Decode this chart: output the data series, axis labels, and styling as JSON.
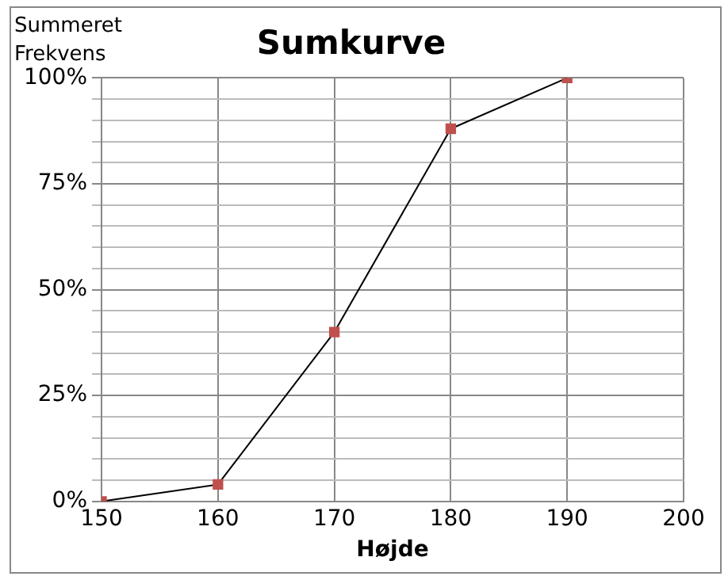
{
  "chart_data": {
    "type": "line",
    "title": "Sumkurve",
    "xlabel": "Højde",
    "ylabel": "Summeret Frekvens",
    "x": [
      150,
      160,
      170,
      180,
      190
    ],
    "series": [
      {
        "color": "#c0504d",
        "values": [
          0,
          4,
          40,
          88,
          100
        ]
      }
    ],
    "xlim": [
      150,
      200
    ],
    "xticks": [
      150,
      160,
      170,
      180,
      190,
      200
    ],
    "ylim": [
      0,
      100
    ],
    "yticks": [
      {
        "value": 0,
        "label": "0%"
      },
      {
        "value": 5,
        "label": null
      },
      {
        "value": 10,
        "label": null
      },
      {
        "value": 15,
        "label": null
      },
      {
        "value": 20,
        "label": null
      },
      {
        "value": 25,
        "label": "25%"
      },
      {
        "value": 30,
        "label": null
      },
      {
        "value": 35,
        "label": null
      },
      {
        "value": 40,
        "label": null
      },
      {
        "value": 45,
        "label": null
      },
      {
        "value": 50,
        "label": "50%"
      },
      {
        "value": 55,
        "label": null
      },
      {
        "value": 60,
        "label": null
      },
      {
        "value": 65,
        "label": null
      },
      {
        "value": 70,
        "label": null
      },
      {
        "value": 75,
        "label": "75%"
      },
      {
        "value": 80,
        "label": null
      },
      {
        "value": 85,
        "label": null
      },
      {
        "value": 90,
        "label": null
      },
      {
        "value": 95,
        "label": null
      },
      {
        "value": 100,
        "label": "100%"
      }
    ],
    "grid": true,
    "legend": false,
    "marker": "square",
    "line_style": "solid"
  }
}
